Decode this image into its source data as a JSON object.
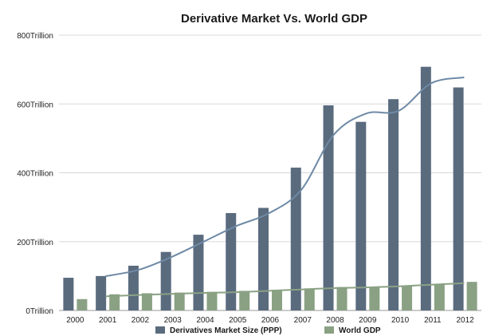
{
  "chart_data": {
    "type": "bar",
    "title": "Derivative Market Vs. World GDP",
    "xlabel": "",
    "ylabel": "",
    "categories": [
      "2000",
      "2001",
      "2002",
      "2003",
      "2004",
      "2005",
      "2006",
      "2007",
      "2008",
      "2009",
      "2010",
      "2011",
      "2012"
    ],
    "series": [
      {
        "name": "Derivatives Market Size (PPP)",
        "type": "bar",
        "color": "#5a6b7e",
        "values": [
          95,
          100,
          130,
          170,
          220,
          283,
          298,
          415,
          596,
          548,
          614,
          708,
          648
        ]
      },
      {
        "name": "World GDP",
        "type": "bar",
        "color": "#8aa184",
        "values": [
          33,
          47,
          50,
          52,
          54,
          57,
          60,
          64,
          68,
          69,
          73,
          76,
          83
        ]
      }
    ],
    "trendlines": [
      {
        "of": "Derivatives Market Size (PPP)",
        "color": "#6f8aa6",
        "values": [
          null,
          100,
          118,
          155,
          200,
          245,
          282,
          350,
          510,
          572,
          580,
          660,
          677
        ]
      },
      {
        "of": "World GDP",
        "color": "#8aa184",
        "values": [
          null,
          41,
          45,
          48,
          51,
          53,
          57,
          61,
          65,
          67,
          70,
          75,
          79
        ]
      }
    ],
    "y_tick_labels": [
      "0Trillion",
      "200Trillion",
      "400Trillion",
      "600Trillion",
      "800Trillion"
    ],
    "y_tick_values": [
      0,
      200,
      400,
      600,
      800
    ],
    "ylim": [
      0,
      800
    ],
    "grid": true,
    "legend_position": "bottom",
    "legend": [
      "Derivatives Market Size (PPP)",
      "World GDP"
    ]
  }
}
